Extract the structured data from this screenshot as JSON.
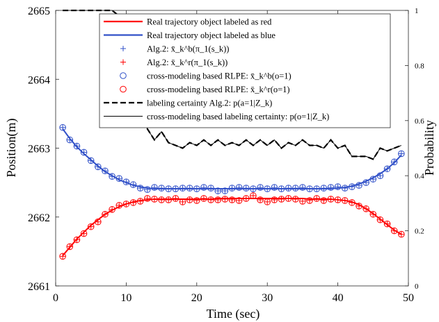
{
  "chart_data": {
    "type": "line",
    "xlabel": "Time (sec)",
    "ylabel_left": "Position(m)",
    "ylabel_right": "Probability",
    "x_ticks": [
      0,
      10,
      20,
      30,
      40,
      50
    ],
    "y_left_ticks": [
      2661,
      2662,
      2663,
      2664,
      2665
    ],
    "y_right_ticks": [
      0,
      0.2,
      0.4,
      0.6,
      0.8,
      1
    ],
    "xlim": [
      0,
      50
    ],
    "ylim_left": [
      2661,
      2665
    ],
    "ylim_right": [
      0,
      1
    ],
    "grid": false,
    "legend_position": "top-right",
    "x": [
      1,
      2,
      3,
      4,
      5,
      6,
      7,
      8,
      9,
      10,
      11,
      12,
      13,
      14,
      15,
      16,
      17,
      18,
      19,
      20,
      21,
      22,
      23,
      24,
      25,
      26,
      27,
      28,
      29,
      30,
      31,
      32,
      33,
      34,
      35,
      36,
      37,
      38,
      39,
      40,
      41,
      42,
      43,
      44,
      45,
      46,
      47,
      48,
      49
    ],
    "series": [
      {
        "name": "Real trajectory object labeled as red",
        "axis": "left",
        "style": "line",
        "color": "#ff0000",
        "values": [
          2661.44,
          2661.56,
          2661.68,
          2661.78,
          2661.88,
          2661.96,
          2662.04,
          2662.1,
          2662.15,
          2662.19,
          2662.22,
          2662.24,
          2662.25,
          2662.26,
          2662.26,
          2662.26,
          2662.26,
          2662.26,
          2662.26,
          2662.26,
          2662.26,
          2662.26,
          2662.27,
          2662.27,
          2662.27,
          2662.27,
          2662.27,
          2662.27,
          2662.27,
          2662.27,
          2662.27,
          2662.27,
          2662.27,
          2662.27,
          2662.27,
          2662.26,
          2662.26,
          2662.26,
          2662.26,
          2662.25,
          2662.24,
          2662.22,
          2662.18,
          2662.12,
          2662.05,
          2661.97,
          2661.89,
          2661.81,
          2661.75
        ]
      },
      {
        "name": "Real trajectory object labeled as blue",
        "axis": "left",
        "style": "line",
        "color": "#3050c8",
        "values": [
          2663.28,
          2663.14,
          2663.02,
          2662.92,
          2662.83,
          2662.74,
          2662.66,
          2662.6,
          2662.54,
          2662.5,
          2662.46,
          2662.44,
          2662.42,
          2662.41,
          2662.41,
          2662.41,
          2662.41,
          2662.41,
          2662.41,
          2662.41,
          2662.41,
          2662.41,
          2662.41,
          2662.41,
          2662.41,
          2662.41,
          2662.41,
          2662.41,
          2662.41,
          2662.41,
          2662.41,
          2662.41,
          2662.41,
          2662.41,
          2662.41,
          2662.41,
          2662.41,
          2662.41,
          2662.41,
          2662.42,
          2662.43,
          2662.45,
          2662.48,
          2662.52,
          2662.57,
          2662.63,
          2662.7,
          2662.79,
          2662.9
        ]
      },
      {
        "name": "Alg.2: x̄_k^b(π_1(s_k))",
        "axis": "left",
        "style": "plus",
        "color": "#3050c8",
        "values": [
          2663.3,
          2663.12,
          2663.03,
          2662.94,
          2662.82,
          2662.73,
          2662.67,
          2662.59,
          2662.56,
          2662.51,
          2662.47,
          2662.42,
          2662.4,
          2662.43,
          2662.42,
          2662.41,
          2662.41,
          2662.42,
          2662.42,
          2662.41,
          2662.43,
          2662.42,
          2662.38,
          2662.38,
          2662.42,
          2662.43,
          2662.42,
          2662.41,
          2662.43,
          2662.41,
          2662.43,
          2662.41,
          2662.42,
          2662.42,
          2662.43,
          2662.41,
          2662.41,
          2662.42,
          2662.43,
          2662.44,
          2662.42,
          2662.44,
          2662.46,
          2662.5,
          2662.55,
          2662.6,
          2662.7,
          2662.8,
          2662.92
        ]
      },
      {
        "name": "Alg.2: x̄_k^r(π_1(s_k))",
        "axis": "left",
        "style": "plus",
        "color": "#ff0000",
        "values": [
          2661.43,
          2661.57,
          2661.67,
          2661.76,
          2661.86,
          2661.93,
          2662.04,
          2662.11,
          2662.17,
          2662.19,
          2662.21,
          2662.23,
          2662.27,
          2662.26,
          2662.25,
          2662.25,
          2662.27,
          2662.22,
          2662.25,
          2662.24,
          2662.27,
          2662.25,
          2662.25,
          2662.26,
          2662.25,
          2662.24,
          2662.27,
          2662.31,
          2662.25,
          2662.22,
          2662.25,
          2662.26,
          2662.27,
          2662.26,
          2662.23,
          2662.24,
          2662.27,
          2662.24,
          2662.26,
          2662.25,
          2662.24,
          2662.21,
          2662.16,
          2662.12,
          2662.04,
          2661.96,
          2661.9,
          2661.8,
          2661.75
        ]
      },
      {
        "name": "cross-modeling based RLPE: x̄_k^b(o=1)",
        "axis": "left",
        "style": "circle",
        "color": "#3050c8",
        "values": [
          2663.3,
          2663.12,
          2663.03,
          2662.94,
          2662.82,
          2662.73,
          2662.67,
          2662.59,
          2662.56,
          2662.51,
          2662.47,
          2662.42,
          2662.4,
          2662.43,
          2662.42,
          2662.41,
          2662.41,
          2662.42,
          2662.42,
          2662.41,
          2662.43,
          2662.42,
          2662.38,
          2662.38,
          2662.42,
          2662.43,
          2662.42,
          2662.41,
          2662.43,
          2662.41,
          2662.43,
          2662.41,
          2662.42,
          2662.42,
          2662.43,
          2662.41,
          2662.41,
          2662.42,
          2662.43,
          2662.44,
          2662.42,
          2662.44,
          2662.46,
          2662.5,
          2662.55,
          2662.6,
          2662.7,
          2662.8,
          2662.92
        ]
      },
      {
        "name": "cross-modeling based RLPE: x̄_k^r(o=1)",
        "axis": "left",
        "style": "circle",
        "color": "#ff0000",
        "values": [
          2661.43,
          2661.57,
          2661.67,
          2661.76,
          2661.86,
          2661.93,
          2662.04,
          2662.11,
          2662.17,
          2662.19,
          2662.21,
          2662.23,
          2662.27,
          2662.26,
          2662.25,
          2662.25,
          2662.27,
          2662.22,
          2662.25,
          2662.24,
          2662.27,
          2662.25,
          2662.25,
          2662.26,
          2662.25,
          2662.24,
          2662.27,
          2662.31,
          2662.25,
          2662.22,
          2662.25,
          2662.26,
          2662.27,
          2662.26,
          2662.23,
          2662.24,
          2662.27,
          2662.24,
          2662.26,
          2662.25,
          2662.24,
          2662.21,
          2662.16,
          2662.12,
          2662.04,
          2661.96,
          2661.9,
          2661.8,
          2661.75
        ]
      },
      {
        "name": "labeling certainty Alg.2: p(a=1|Z_k)",
        "axis": "right",
        "style": "dashed",
        "color": "#000000",
        "values": [
          1.0,
          1.0,
          1.0,
          1.0,
          1.0,
          1.0,
          1.0,
          1.0,
          0.98,
          0.93,
          0.86,
          0.7,
          0.57,
          0.53,
          0.56,
          0.52,
          0.51,
          0.5,
          0.52,
          0.51,
          0.53,
          0.51,
          0.53,
          0.51,
          0.52,
          0.51,
          0.53,
          0.51,
          0.53,
          0.51,
          0.53,
          0.5,
          0.52,
          0.51,
          0.53,
          0.51,
          0.51,
          0.5,
          0.53,
          0.5,
          0.51,
          0.47,
          0.47,
          0.47,
          0.46,
          0.5,
          0.49,
          0.5,
          0.51
        ]
      },
      {
        "name": "cross-modeling based labeling certainty: p(o=1|Z_k)",
        "axis": "right",
        "style": "solid",
        "color": "#000000",
        "values": [
          1.0,
          1.0,
          1.0,
          1.0,
          1.0,
          1.0,
          1.0,
          1.0,
          0.98,
          0.93,
          0.86,
          0.7,
          0.57,
          0.53,
          0.56,
          0.52,
          0.51,
          0.5,
          0.52,
          0.51,
          0.53,
          0.51,
          0.53,
          0.51,
          0.52,
          0.51,
          0.53,
          0.51,
          0.53,
          0.51,
          0.53,
          0.5,
          0.52,
          0.51,
          0.53,
          0.51,
          0.51,
          0.5,
          0.53,
          0.5,
          0.51,
          0.47,
          0.47,
          0.47,
          0.46,
          0.5,
          0.49,
          0.5,
          0.51
        ]
      }
    ]
  }
}
